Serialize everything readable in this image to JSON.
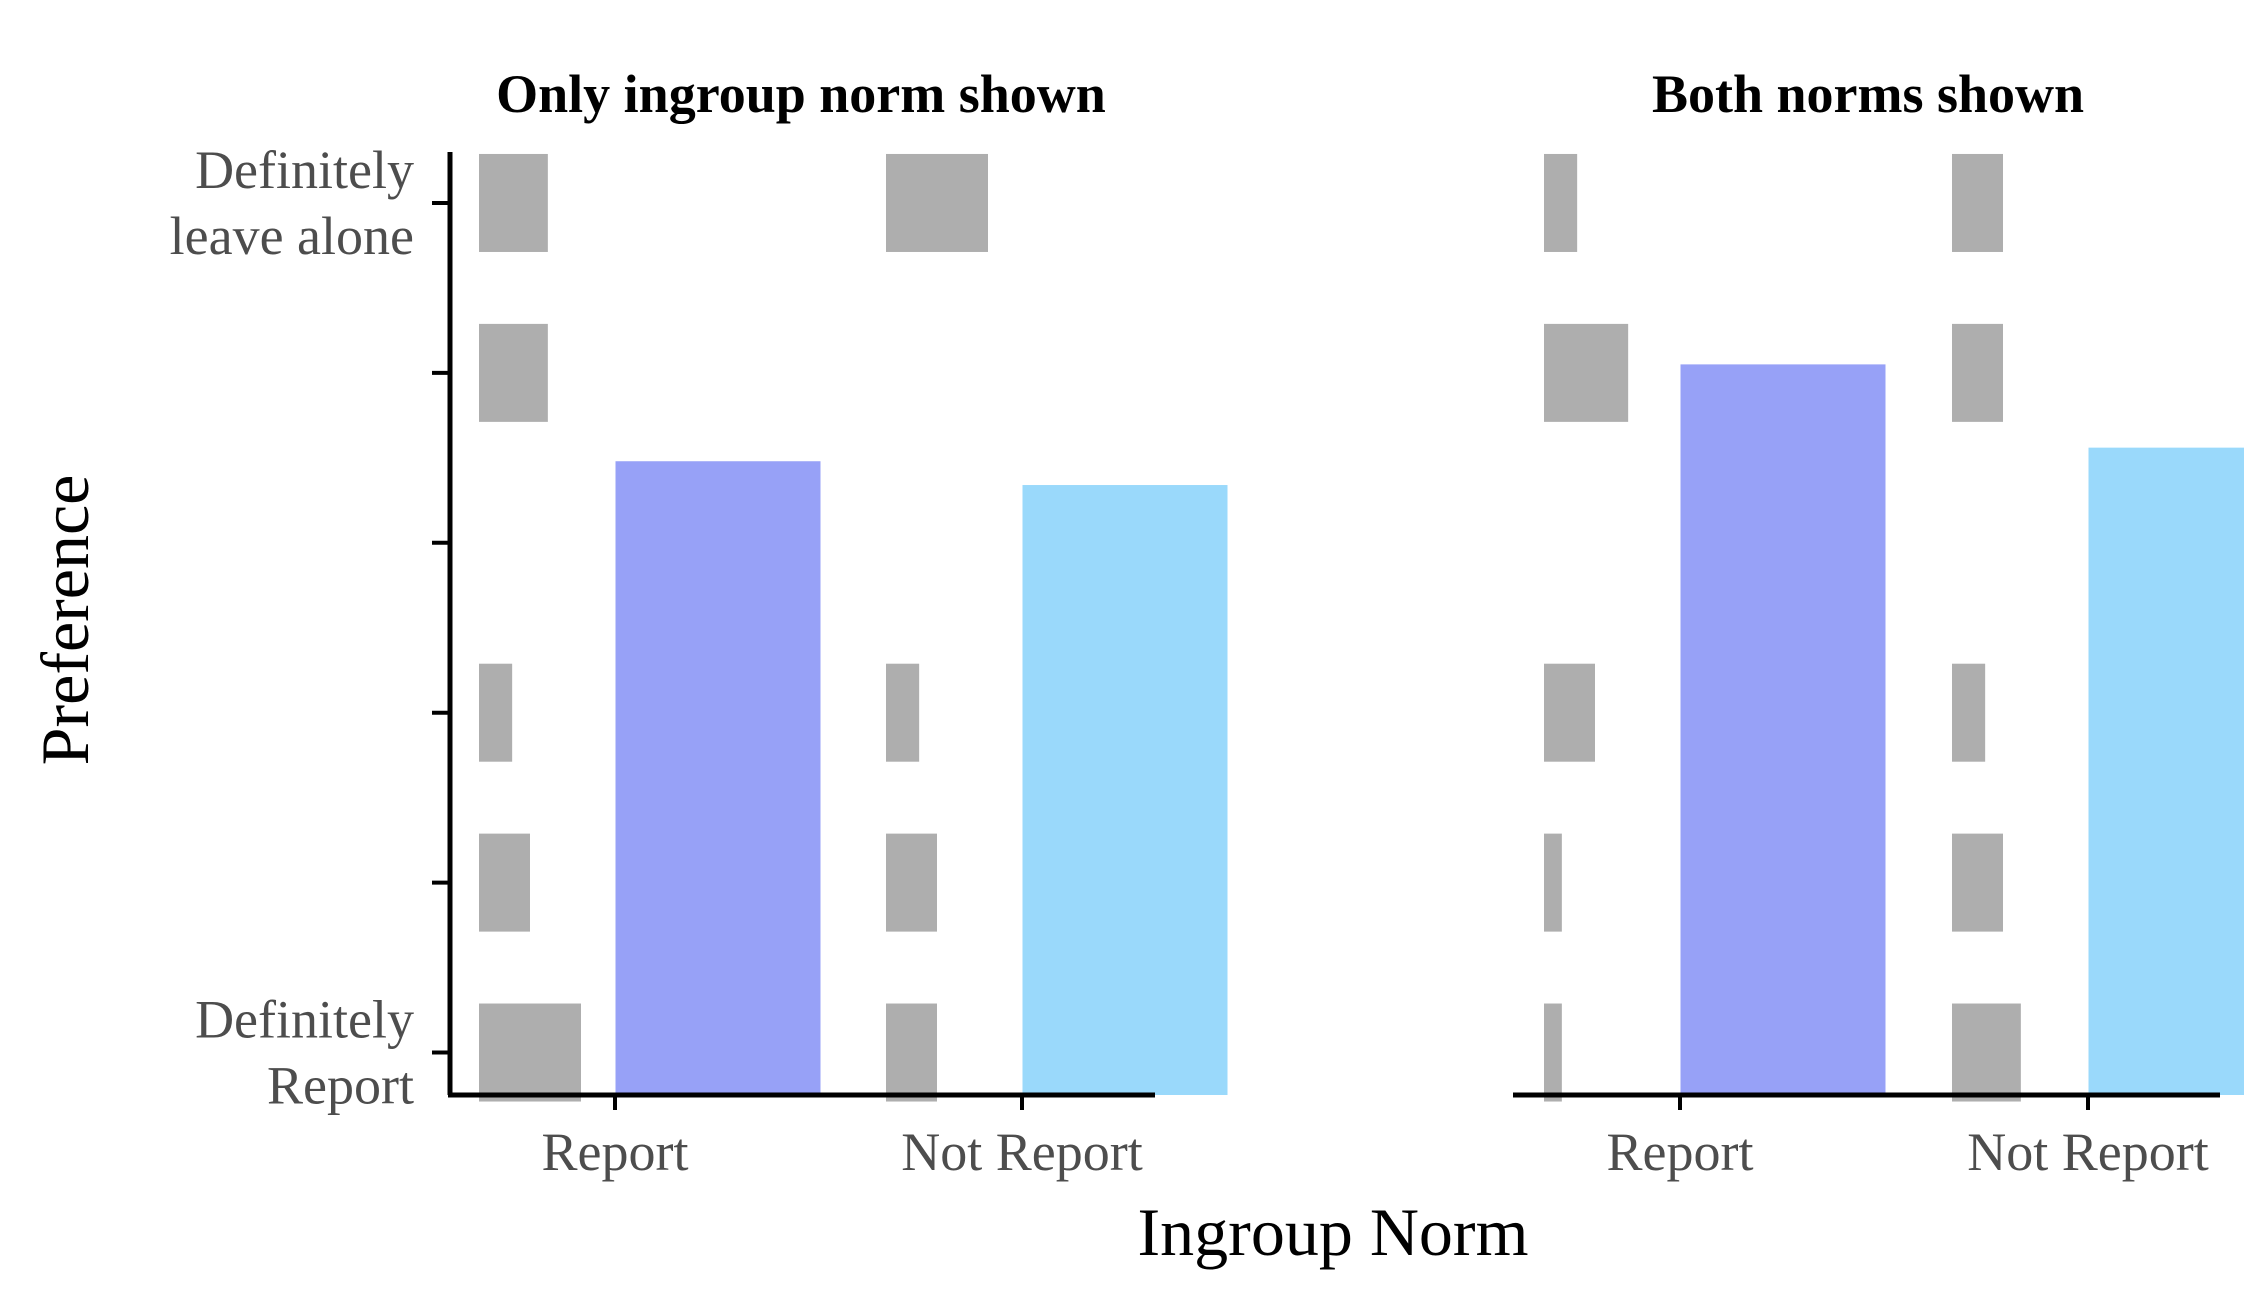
{
  "chart_data": {
    "type": "bar",
    "xlabel": "Ingroup Norm",
    "ylabel": "Preference",
    "y_tick_labels": [
      {
        "value": 1,
        "lines": [
          "Definitely",
          "Report"
        ]
      },
      {
        "value": 2,
        "lines": [
          ""
        ]
      },
      {
        "value": 3,
        "lines": [
          ""
        ]
      },
      {
        "value": 4,
        "lines": [
          ""
        ]
      },
      {
        "value": 5,
        "lines": [
          ""
        ]
      },
      {
        "value": 6,
        "lines": [
          "Definitely",
          "leave alone"
        ]
      }
    ],
    "ylim": [
      0.75,
      6.3
    ],
    "colors": {
      "Report": "#8c97f6",
      "Not Report": "#8fd5fb",
      "distribution": "#a0a0a0"
    },
    "panels": [
      {
        "title": "Only ingroup norm shown",
        "categories": [
          "Report",
          "Not Report"
        ],
        "means": [
          4.48,
          4.34
        ],
        "distribution": {
          "Report": {
            "1": 0.4,
            "2": 0.2,
            "3": 0.13,
            "4": 0,
            "5": 0.27,
            "6": 0.27
          },
          "Not Report": {
            "1": 0.2,
            "2": 0.2,
            "3": 0.13,
            "4": 0,
            "5": 0,
            "6": 0.4
          }
        }
      },
      {
        "title": "Both norms shown",
        "categories": [
          "Report",
          "Not Report"
        ],
        "means": [
          5.05,
          4.56
        ],
        "distribution": {
          "Report": {
            "1": 0.07,
            "2": 0.07,
            "3": 0.2,
            "4": 0,
            "5": 0.33,
            "6": 0.13
          },
          "Not Report": {
            "1": 0.27,
            "2": 0.2,
            "3": 0.13,
            "4": 0,
            "5": 0.2,
            "6": 0.2
          }
        }
      }
    ]
  }
}
